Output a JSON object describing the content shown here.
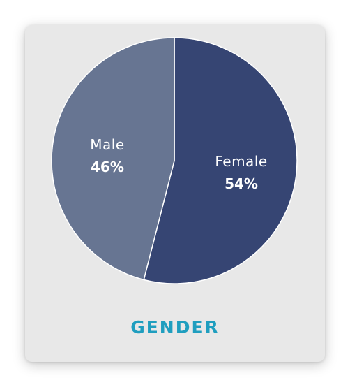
{
  "chart_data": {
    "type": "pie",
    "title": "GENDER",
    "slices": [
      {
        "label": "Female",
        "value": 54,
        "display": "54%",
        "color": "#364573"
      },
      {
        "label": "Male",
        "value": 46,
        "display": "46%",
        "color": "#677592"
      }
    ]
  },
  "colors": {
    "card_background": "#e8e8e8",
    "title": "#1f9ebf",
    "slice_separator": "#ffffff"
  }
}
